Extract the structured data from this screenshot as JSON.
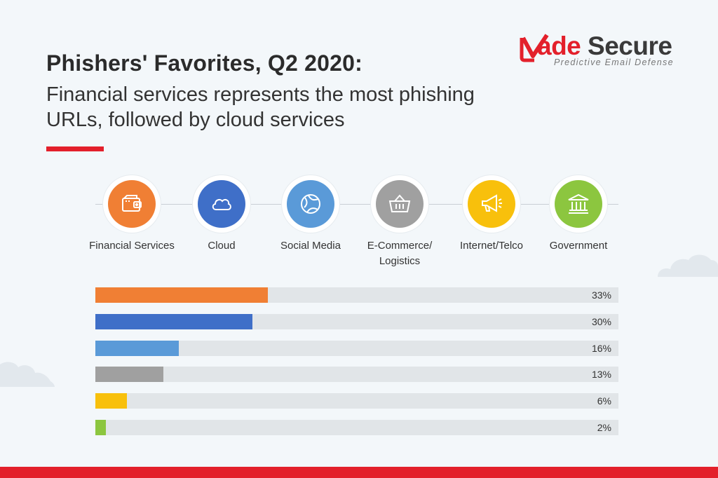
{
  "header": {
    "title": "Phishers' Favorites, Q2 2020:",
    "subtitle": "Financial services represents the most phishing URLs, followed by cloud services"
  },
  "logo": {
    "brand_first": "ade",
    "brand_second": "Secure",
    "tagline": "Predictive Email Defense",
    "brand_color": "#e3202b"
  },
  "categories": [
    {
      "label": "Financial Services",
      "icon": "wallet-icon",
      "color": "#f07f34"
    },
    {
      "label": "Cloud",
      "icon": "cloud-icon",
      "color": "#3f6fc8"
    },
    {
      "label": "Social Media",
      "icon": "globe-icon",
      "color": "#5a9ad8"
    },
    {
      "label": "E-Commerce/ Logistics",
      "icon": "basket-icon",
      "color": "#a0a0a0"
    },
    {
      "label": "Internet/Telco",
      "icon": "megaphone-icon",
      "color": "#f8c00c"
    },
    {
      "label": "Government",
      "icon": "government-building-icon",
      "color": "#8cc63f"
    }
  ],
  "chart_data": {
    "type": "bar",
    "orientation": "horizontal",
    "categories": [
      "Financial Services",
      "Cloud",
      "Social Media",
      "E-Commerce/ Logistics",
      "Internet/Telco",
      "Government"
    ],
    "values": [
      33,
      30,
      16,
      13,
      6,
      2
    ],
    "value_labels": [
      "33%",
      "30%",
      "16%",
      "13%",
      "6%",
      "2%"
    ],
    "colors": [
      "#f07f34",
      "#3f6fc8",
      "#5a9ad8",
      "#a0a0a0",
      "#f8c00c",
      "#8cc63f"
    ],
    "track_color": "#e1e5e8",
    "xlim": [
      0,
      100
    ],
    "grid": false,
    "legend": "none"
  }
}
